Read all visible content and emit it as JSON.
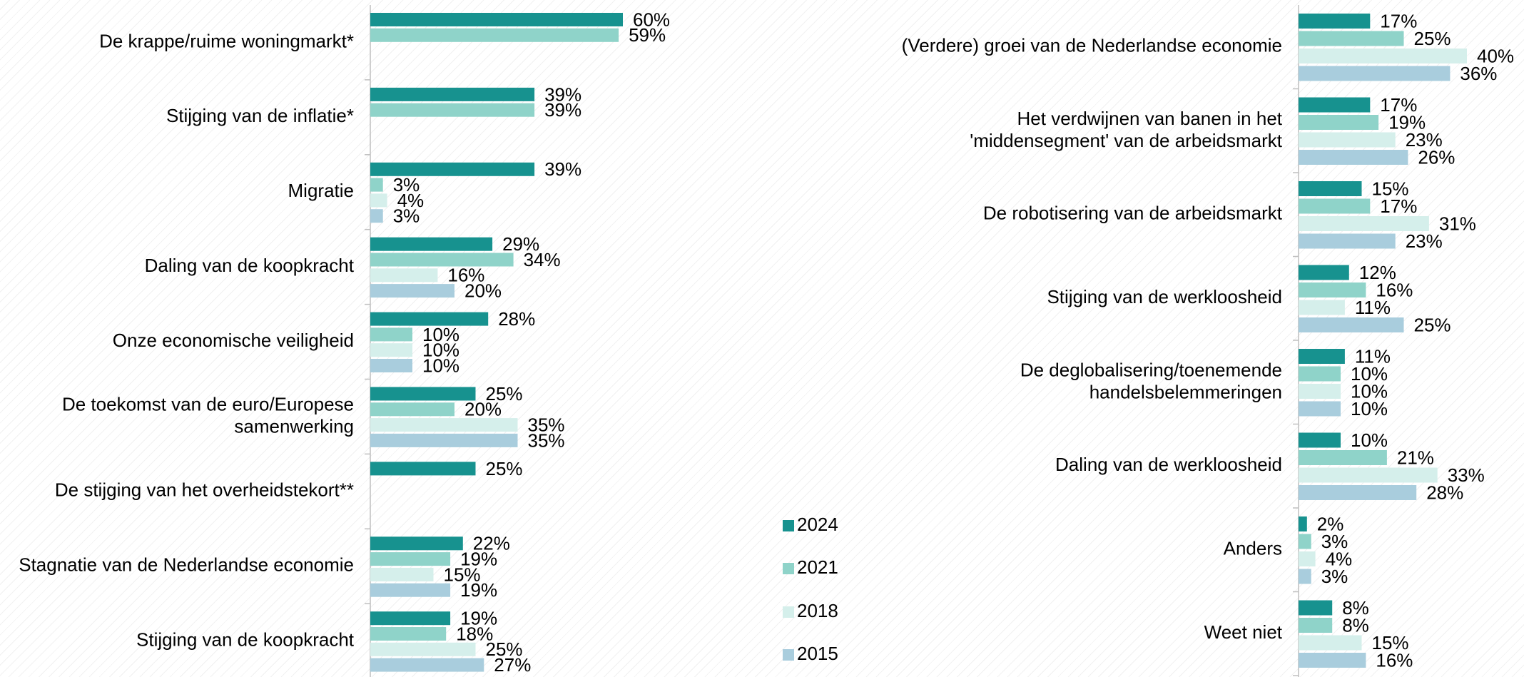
{
  "chart_data": [
    {
      "type": "bar",
      "orientation": "horizontal",
      "categories": [
        "De krappe/ruime woningmarkt*",
        "Stijging van de inflatie*",
        "Migratie",
        "Daling van de koopkracht",
        "Onze economische veiligheid",
        "De toekomst van de euro/Europese\nsamenwerking",
        "De stijging van het overheidstekort**",
        "Stagnatie van de Nederlandse economie",
        "Stijging van de koopkracht"
      ],
      "series": [
        {
          "name": "2024",
          "color": "#17928f",
          "values": [
            60,
            39,
            39,
            29,
            28,
            25,
            25,
            22,
            19
          ],
          "value_labels": [
            "60%",
            "39%",
            "39%",
            "29%",
            "28%",
            "25%",
            "25%",
            "22%",
            "19%"
          ]
        },
        {
          "name": "2021",
          "color": "#8fd3c9",
          "values": [
            59,
            39,
            3,
            34,
            10,
            20,
            null,
            19,
            18
          ],
          "value_labels": [
            "59%",
            "39%",
            "3%",
            "34%",
            "10%",
            "20%",
            null,
            "19%",
            "18%"
          ]
        },
        {
          "name": "2018",
          "color": "#d5efeb",
          "values": [
            null,
            null,
            4,
            16,
            10,
            35,
            null,
            15,
            25
          ],
          "value_labels": [
            null,
            null,
            "4%",
            "16%",
            "10%",
            "35%",
            null,
            "15%",
            "25%"
          ]
        },
        {
          "name": "2015",
          "color": "#a9cddd",
          "values": [
            null,
            null,
            3,
            20,
            10,
            35,
            null,
            19,
            27
          ],
          "value_labels": [
            null,
            null,
            "3%",
            "20%",
            "10%",
            "35%",
            null,
            "19%",
            "27%"
          ]
        }
      ]
    },
    {
      "type": "bar",
      "orientation": "horizontal",
      "categories": [
        "(Verdere) groei van de Nederlandse economie",
        "Het verdwijnen van banen in het\n'middensegment' van de arbeidsmarkt",
        "De robotisering van de arbeidsmarkt",
        "Stijging van de werkloosheid",
        "De deglobalisering/toenemende\nhandelsbelemmeringen",
        "Daling van de werkloosheid",
        "Anders",
        "Weet niet"
      ],
      "series": [
        {
          "color": "#17928f",
          "values": [
            17,
            17,
            15,
            12,
            11,
            10,
            2,
            8
          ],
          "value_labels": [
            "17%",
            "17%",
            "15%",
            "12%",
            "11%",
            "10%",
            "2%",
            "8%"
          ]
        },
        {
          "color": "#8fd3c9",
          "values": [
            25,
            19,
            17,
            16,
            10,
            21,
            3,
            8
          ],
          "value_labels": [
            "25%",
            "19%",
            "17%",
            "16%",
            "10%",
            "21%",
            "3%",
            "8%"
          ]
        },
        {
          "color": "#d5efeb",
          "values": [
            40,
            23,
            31,
            11,
            10,
            33,
            4,
            15
          ],
          "value_labels": [
            "40%",
            "23%",
            "31%",
            "11%",
            "10%",
            "33%",
            "4%",
            "15%"
          ]
        },
        {
          "color": "#a9cddd",
          "values": [
            36,
            26,
            23,
            25,
            10,
            28,
            3,
            16
          ],
          "value_labels": [
            "36%",
            "26%",
            "23%",
            "25%",
            "10%",
            "28%",
            "3%",
            "16%"
          ]
        }
      ]
    }
  ]
}
